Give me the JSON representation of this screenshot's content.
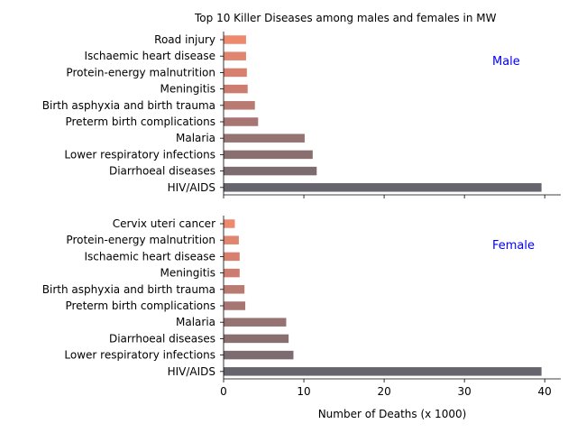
{
  "chart_data": {
    "type": "bar",
    "orientation": "horizontal",
    "title": "Top 10 Killer Diseases among males and females in MW",
    "xlabel": "Number of Deaths (x 1000)",
    "xlim": [
      0,
      42
    ],
    "x_ticks": [
      "0",
      "10",
      "20",
      "30",
      "40"
    ],
    "grid": false,
    "annotation_color": "#0000ff",
    "panels": [
      {
        "annotation": "Male",
        "categories": [
          "Road injury",
          "Ischaemic heart disease",
          "Protein-energy malnutrition",
          "Meningitis",
          "Birth asphyxia and birth trauma",
          "Preterm birth complications",
          "Malaria",
          "Lower respiratory infections",
          "Diarrhoeal diseases",
          "HIV/AIDS"
        ],
        "values": [
          2.8,
          2.8,
          2.9,
          3.0,
          3.9,
          4.3,
          10.1,
          11.1,
          11.6,
          39.6
        ],
        "colors": [
          "#ed8a6e",
          "#e0856f",
          "#d78070",
          "#cc7d70",
          "#b97a72",
          "#a77572",
          "#957372",
          "#896f70",
          "#7c6b6f",
          "#66646c"
        ]
      },
      {
        "annotation": "Female",
        "categories": [
          "Cervix uteri cancer",
          "Protein-energy malnutrition",
          "Ischaemic heart disease",
          "Meningitis",
          "Birth asphyxia and birth trauma",
          "Preterm birth complications",
          "Malaria",
          "Diarrhoeal diseases",
          "Lower respiratory infections",
          "HIV/AIDS"
        ],
        "values": [
          1.4,
          1.9,
          2.0,
          2.0,
          2.6,
          2.7,
          7.8,
          8.1,
          8.7,
          39.6
        ],
        "colors": [
          "#ed8a6e",
          "#e0856f",
          "#d78070",
          "#cc7d70",
          "#b97a72",
          "#a77572",
          "#957372",
          "#896f70",
          "#7c6b6f",
          "#66646c"
        ]
      }
    ]
  }
}
